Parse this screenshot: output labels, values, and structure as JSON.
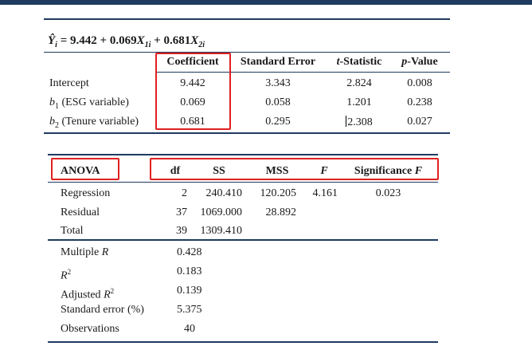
{
  "equation": {
    "lhs": "Ŷ",
    "lhs_sub": "i",
    "eq": " = ",
    "b0": "9.442",
    "p1": " + ",
    "b1": "0.069",
    "x1": "X",
    "x1_sub": "1i",
    "p2": " + ",
    "b2": "0.681",
    "x2": "X",
    "x2_sub": "2i"
  },
  "reg_table": {
    "headers": {
      "coef": "Coefficient",
      "se": "Standard Error",
      "t_italic": "t",
      "t_rest": "-Statistic",
      "p_italic": "p",
      "p_rest": "-Value"
    },
    "rows": [
      {
        "label": "Intercept",
        "coef": "9.442",
        "se": "3.343",
        "t": "2.824",
        "p": "0.008"
      },
      {
        "label_pre": "b",
        "label_sub": "1",
        "label_post": " (ESG variable)",
        "coef": "0.069",
        "se": "0.058",
        "t": "1.201",
        "p": "0.238"
      },
      {
        "label_pre": "b",
        "label_sub": "2",
        "label_post": " (Tenure variable)",
        "coef": "0.681",
        "se": "0.295",
        "t": "2.308",
        "p": "0.027"
      }
    ]
  },
  "anova": {
    "title": "ANOVA",
    "headers": {
      "df": "df",
      "ss": "SS",
      "mss": "MSS",
      "f": "F",
      "sig_pre": "Significance ",
      "sig_f": "F"
    },
    "rows": [
      {
        "label": "Regression",
        "df": "2",
        "ss": "240.410",
        "mss": "120.205",
        "f": "4.161",
        "sig": "0.023"
      },
      {
        "label": "Residual",
        "df": "37",
        "ss": "1069.000",
        "mss": "28.892"
      },
      {
        "label": "Total",
        "df": "39",
        "ss": "1309.410"
      }
    ],
    "stats": [
      {
        "label_pre": "Multiple ",
        "label_it": "R",
        "value": "0.428"
      },
      {
        "label_it": "R",
        "label_sup": "2",
        "value": "0.183"
      },
      {
        "label_pre": "Adjusted ",
        "label_it": "R",
        "label_sup": "2",
        "value": "0.139"
      },
      {
        "label_pre": "Standard error (%)",
        "value": "5.375"
      },
      {
        "label_pre": "Observations",
        "value": "40"
      }
    ]
  },
  "colors": {
    "rule": "#1f3a5f",
    "highlight": "#e02020"
  }
}
